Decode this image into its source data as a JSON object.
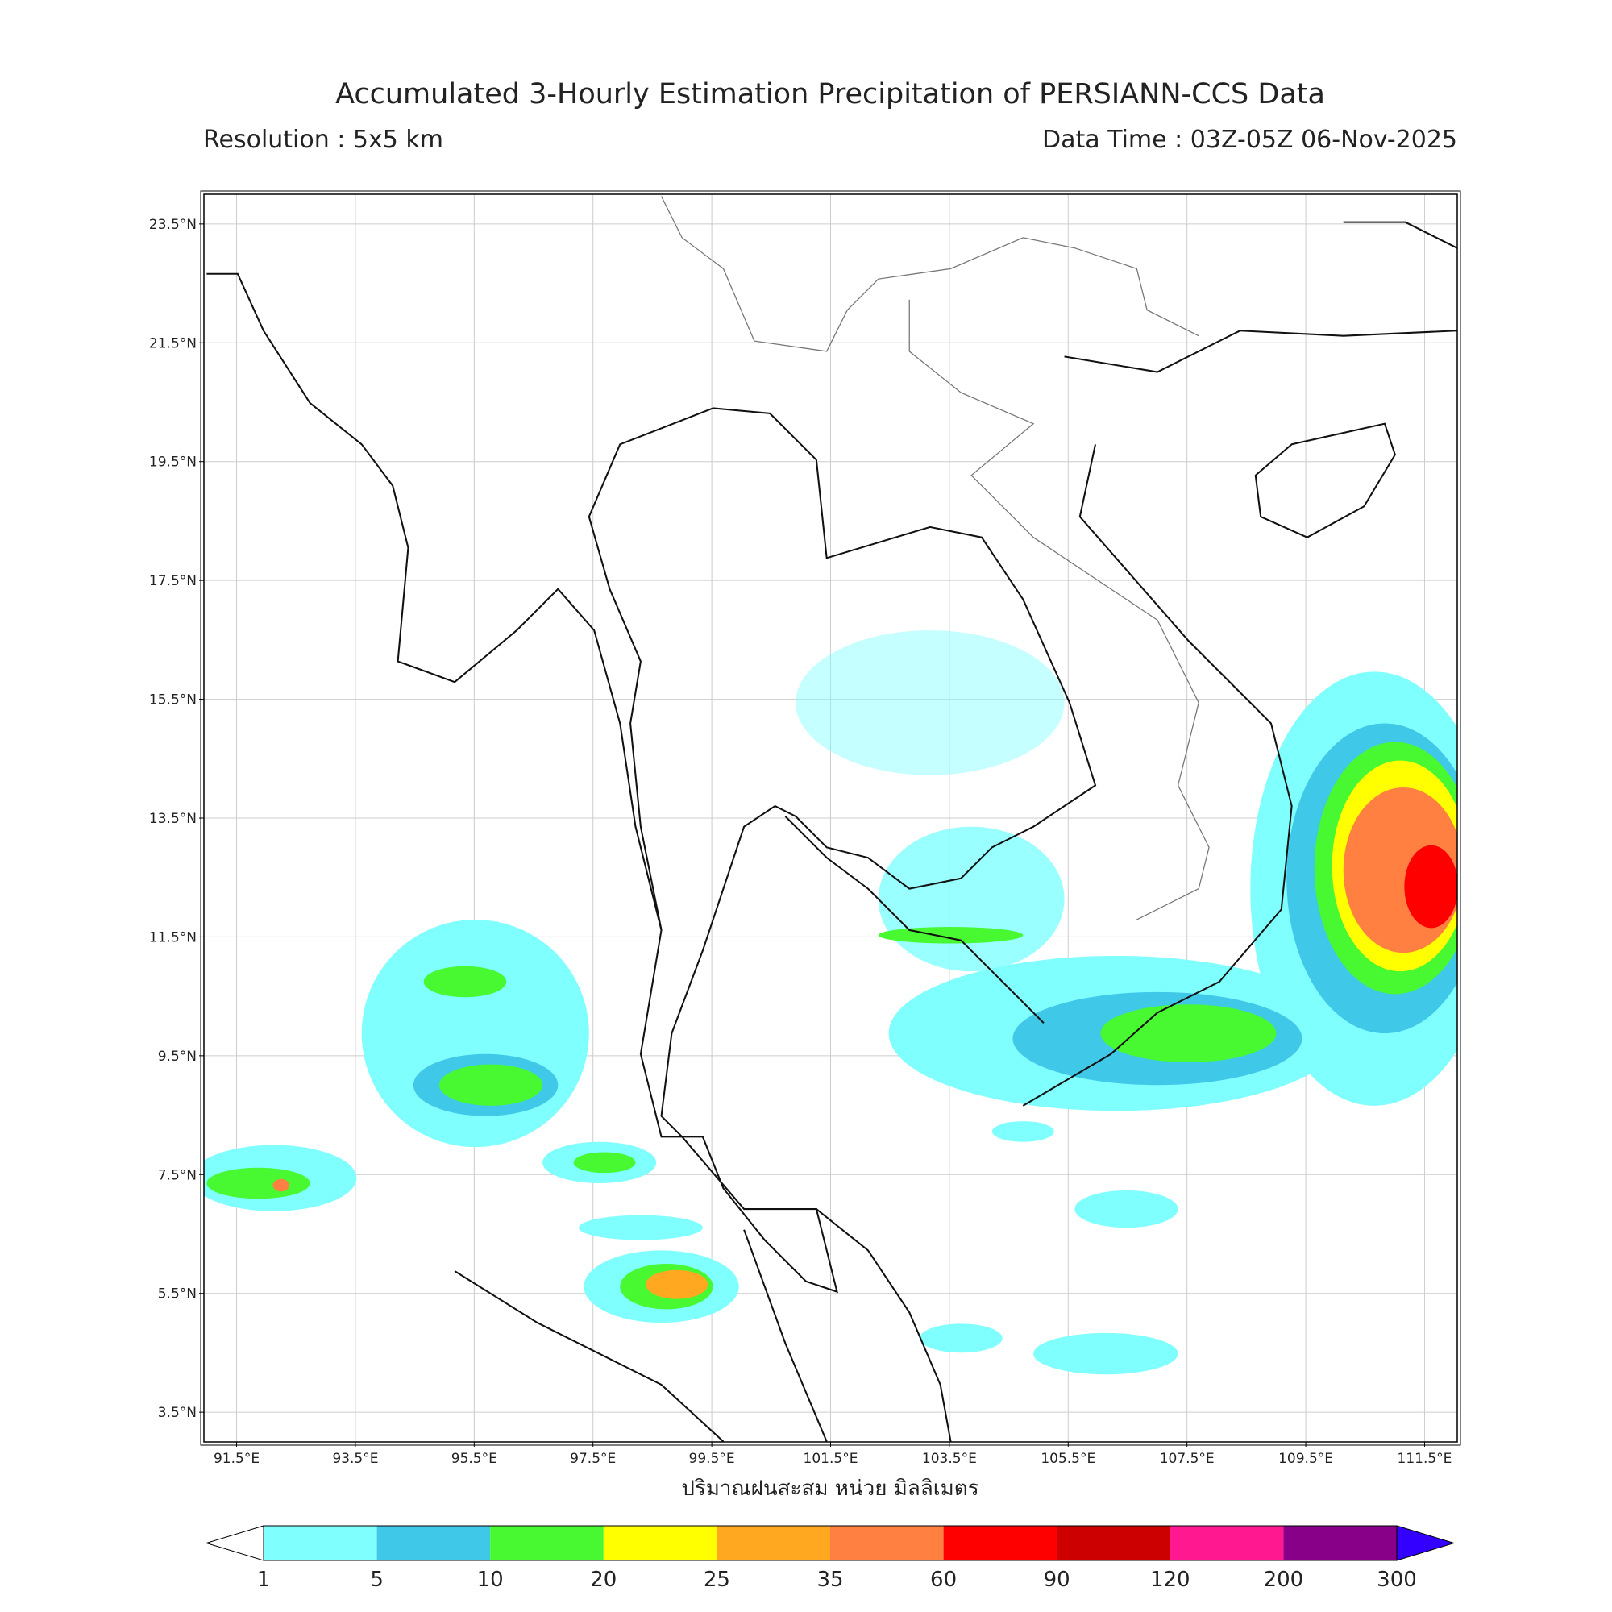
{
  "header": {
    "title": "Accumulated 3-Hourly Estimation Precipitation of PERSIANN-CCS Data",
    "resolution": "Resolution : 5x5 km",
    "data_time": "Data Time : 03Z-05Z 06-Nov-2025"
  },
  "map": {
    "xlim": [
      90.95,
      112.05
    ],
    "ylim": [
      3.0,
      24.0
    ],
    "xticks": [
      {
        "value": 91.5,
        "label": "91.5°E"
      },
      {
        "value": 93.5,
        "label": "93.5°E"
      },
      {
        "value": 95.5,
        "label": "95.5°E"
      },
      {
        "value": 97.5,
        "label": "97.5°E"
      },
      {
        "value": 99.5,
        "label": "99.5°E"
      },
      {
        "value": 101.5,
        "label": "101.5°E"
      },
      {
        "value": 103.5,
        "label": "103.5°E"
      },
      {
        "value": 105.5,
        "label": "105.5°E"
      },
      {
        "value": 107.5,
        "label": "107.5°E"
      },
      {
        "value": 109.5,
        "label": "109.5°E"
      },
      {
        "value": 111.5,
        "label": "111.5°E"
      }
    ],
    "yticks": [
      {
        "value": 3.5,
        "label": "3.5°N"
      },
      {
        "value": 5.5,
        "label": "5.5°N"
      },
      {
        "value": 7.5,
        "label": "7.5°N"
      },
      {
        "value": 9.5,
        "label": "9.5°N"
      },
      {
        "value": 11.5,
        "label": "11.5°N"
      },
      {
        "value": 13.5,
        "label": "13.5°N"
      },
      {
        "value": 15.5,
        "label": "15.5°N"
      },
      {
        "value": 17.5,
        "label": "17.5°N"
      },
      {
        "value": 19.5,
        "label": "19.5°N"
      },
      {
        "value": 21.5,
        "label": "21.5°N"
      },
      {
        "value": 23.5,
        "label": "23.5°N"
      }
    ],
    "xlabel": "ปริมาณฝนสะสม หน่วย มิลลิเมตร"
  },
  "colorbar": {
    "levels": [
      1,
      5,
      10,
      20,
      25,
      35,
      60,
      90,
      120,
      200,
      300
    ],
    "colors": [
      "#80ffff",
      "#40c8e8",
      "#48f830",
      "#ffff00",
      "#ffa820",
      "#ff8040",
      "#ff0000",
      "#cc0000",
      "#ff1890",
      "#880088"
    ],
    "extend_color": "#3300ff"
  }
}
